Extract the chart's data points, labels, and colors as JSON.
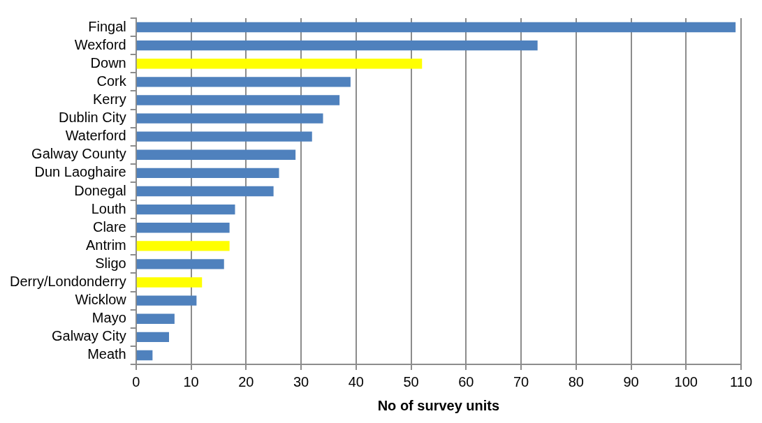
{
  "chart_data": {
    "type": "bar",
    "orientation": "horizontal",
    "xlabel": "No of survey units",
    "categories": [
      "Fingal",
      "Wexford",
      "Down",
      "Cork",
      "Kerry",
      "Dublin City",
      "Waterford",
      "Galway County",
      "Dun Laoghaire",
      "Donegal",
      "Louth",
      "Clare",
      "Antrim",
      "Sligo",
      "Derry/Londonderry",
      "Wicklow",
      "Mayo",
      "Galway City",
      "Meath"
    ],
    "values": [
      109,
      73,
      52,
      39,
      37,
      34,
      32,
      29,
      26,
      25,
      18,
      17,
      17,
      16,
      12,
      11,
      7,
      6,
      3
    ],
    "colors": [
      "#4f81bd",
      "#4f81bd",
      "#ffff00",
      "#4f81bd",
      "#4f81bd",
      "#4f81bd",
      "#4f81bd",
      "#4f81bd",
      "#4f81bd",
      "#4f81bd",
      "#4f81bd",
      "#4f81bd",
      "#ffff00",
      "#4f81bd",
      "#ffff00",
      "#4f81bd",
      "#4f81bd",
      "#4f81bd",
      "#4f81bd"
    ],
    "xlim": [
      0,
      110
    ],
    "xticks": [
      0,
      10,
      20,
      30,
      40,
      50,
      60,
      70,
      80,
      90,
      100,
      110
    ],
    "grid": "x",
    "legend": false
  }
}
